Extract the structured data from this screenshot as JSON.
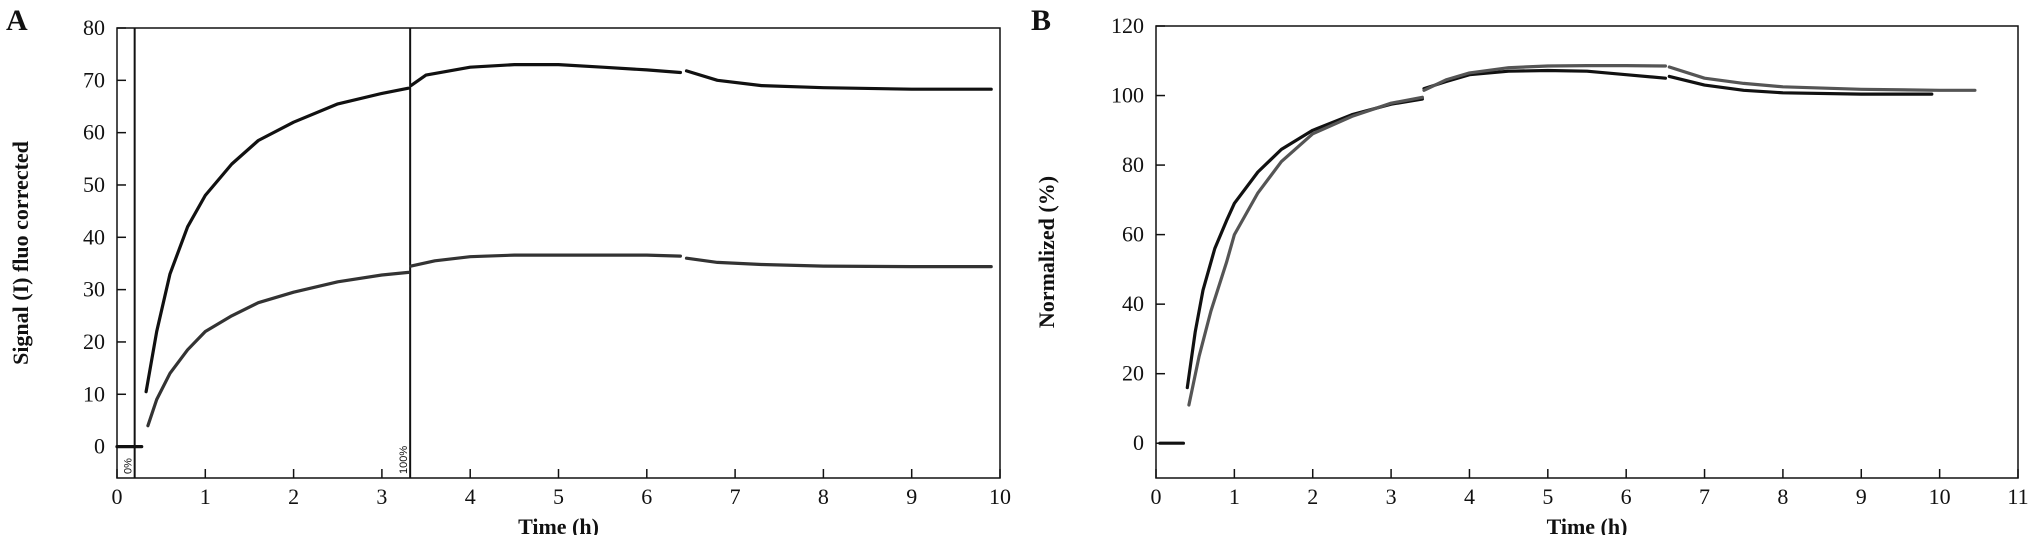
{
  "chart_data": [
    {
      "type": "line",
      "panel_label": "A",
      "xlabel": "Time (h)",
      "ylabel": "Signal (I) fluo corrected",
      "xlim": [
        0,
        10
      ],
      "ylim": [
        -6,
        80
      ],
      "xticks": [
        0,
        1,
        2,
        3,
        4,
        5,
        6,
        7,
        8,
        9,
        10
      ],
      "yticks": [
        0,
        10,
        20,
        30,
        40,
        50,
        60,
        70,
        80
      ],
      "grid": false,
      "legend": "none",
      "markers": [
        {
          "x": 0.2,
          "label": "0%"
        },
        {
          "x": 3.32,
          "label": "100%"
        }
      ],
      "series": [
        {
          "color": "#111111",
          "segments": [
            [
              [
                0.0,
                0.0
              ],
              [
                0.28,
                0.0
              ]
            ],
            [
              [
                0.33,
                10.5
              ],
              [
                0.45,
                22
              ],
              [
                0.6,
                33
              ],
              [
                0.8,
                42
              ],
              [
                1.0,
                48
              ],
              [
                1.3,
                54
              ],
              [
                1.6,
                58.5
              ],
              [
                2.0,
                62
              ],
              [
                2.5,
                65.5
              ],
              [
                3.0,
                67.5
              ],
              [
                3.3,
                68.5
              ]
            ],
            [
              [
                3.33,
                69.0
              ],
              [
                3.5,
                71
              ],
              [
                4.0,
                72.5
              ],
              [
                4.5,
                73.0
              ],
              [
                5.0,
                73.0
              ],
              [
                5.5,
                72.5
              ],
              [
                6.0,
                72.0
              ],
              [
                6.38,
                71.5
              ]
            ],
            [
              [
                6.45,
                71.8
              ],
              [
                6.8,
                70
              ],
              [
                7.3,
                69
              ],
              [
                8.0,
                68.6
              ],
              [
                9.0,
                68.3
              ],
              [
                9.9,
                68.3
              ]
            ]
          ]
        },
        {
          "color": "#333333",
          "segments": [
            [
              [
                0.35,
                4.0
              ],
              [
                0.45,
                9
              ],
              [
                0.6,
                14
              ],
              [
                0.8,
                18.5
              ],
              [
                1.0,
                22
              ],
              [
                1.3,
                25
              ],
              [
                1.6,
                27.5
              ],
              [
                2.0,
                29.5
              ],
              [
                2.5,
                31.5
              ],
              [
                3.0,
                32.8
              ],
              [
                3.3,
                33.3
              ]
            ],
            [
              [
                3.33,
                34.5
              ],
              [
                3.6,
                35.5
              ],
              [
                4.0,
                36.3
              ],
              [
                4.5,
                36.6
              ],
              [
                5.0,
                36.6
              ],
              [
                5.5,
                36.6
              ],
              [
                6.0,
                36.6
              ],
              [
                6.38,
                36.4
              ]
            ],
            [
              [
                6.45,
                36.0
              ],
              [
                6.8,
                35.2
              ],
              [
                7.3,
                34.8
              ],
              [
                8.0,
                34.5
              ],
              [
                9.0,
                34.4
              ],
              [
                9.9,
                34.4
              ]
            ]
          ]
        }
      ]
    },
    {
      "type": "line",
      "panel_label": "B",
      "xlabel": "Time (h)",
      "ylabel": "Normalized (%)",
      "xlim": [
        0,
        11
      ],
      "ylim": [
        -10,
        120
      ],
      "xticks": [
        0,
        1,
        2,
        3,
        4,
        5,
        6,
        7,
        8,
        9,
        10,
        11
      ],
      "yticks": [
        0,
        20,
        40,
        60,
        80,
        100,
        120
      ],
      "grid": false,
      "legend": "none",
      "series": [
        {
          "color": "#111111",
          "segments": [
            [
              [
                0.05,
                0.0
              ],
              [
                0.35,
                0.0
              ]
            ],
            [
              [
                0.4,
                16.0
              ],
              [
                0.5,
                32
              ],
              [
                0.6,
                44
              ],
              [
                0.75,
                56
              ],
              [
                0.9,
                64
              ],
              [
                1.0,
                69
              ],
              [
                1.3,
                78
              ],
              [
                1.6,
                84.5
              ],
              [
                2.0,
                90
              ],
              [
                2.5,
                94.5
              ],
              [
                3.0,
                97.5
              ],
              [
                3.4,
                99
              ]
            ],
            [
              [
                3.42,
                102
              ],
              [
                3.7,
                104
              ],
              [
                4.0,
                106
              ],
              [
                4.5,
                107
              ],
              [
                5.0,
                107.2
              ],
              [
                5.5,
                107
              ],
              [
                6.0,
                106
              ],
              [
                6.5,
                105
              ]
            ],
            [
              [
                6.55,
                105.5
              ],
              [
                7.0,
                103
              ],
              [
                7.5,
                101.5
              ],
              [
                8.0,
                100.8
              ],
              [
                9.0,
                100.4
              ],
              [
                9.9,
                100.4
              ]
            ]
          ]
        },
        {
          "color": "#555555",
          "segments": [
            [
              [
                0.42,
                11.0
              ],
              [
                0.55,
                25
              ],
              [
                0.7,
                38
              ],
              [
                0.9,
                52
              ],
              [
                1.0,
                60
              ],
              [
                1.3,
                72
              ],
              [
                1.6,
                81
              ],
              [
                2.0,
                89
              ],
              [
                2.5,
                94
              ],
              [
                3.0,
                97.8
              ],
              [
                3.4,
                99.5
              ]
            ],
            [
              [
                3.42,
                101.5
              ],
              [
                3.7,
                104.5
              ],
              [
                4.0,
                106.5
              ],
              [
                4.5,
                108
              ],
              [
                5.0,
                108.5
              ],
              [
                5.5,
                108.6
              ],
              [
                6.0,
                108.6
              ],
              [
                6.5,
                108.5
              ]
            ],
            [
              [
                6.55,
                108.2
              ],
              [
                7.0,
                105
              ],
              [
                7.5,
                103.5
              ],
              [
                8.0,
                102.5
              ],
              [
                9.0,
                101.8
              ],
              [
                10.0,
                101.5
              ],
              [
                10.45,
                101.5
              ]
            ]
          ]
        }
      ]
    }
  ]
}
